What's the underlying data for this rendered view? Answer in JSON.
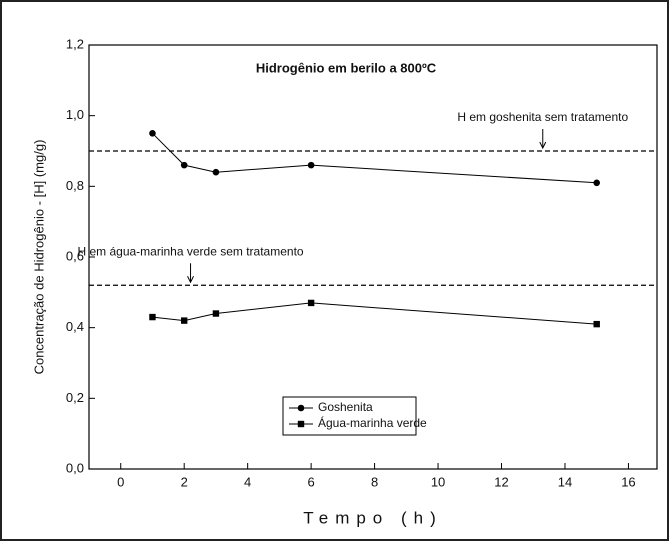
{
  "chart_data": {
    "type": "line",
    "title": "Hidrogênio em berilo a 800ºC",
    "x_label": "Tempo (h)",
    "y_label": "Concentração de Hidrogênio - [H] (mg/g)",
    "xlim": [
      -1,
      16.9
    ],
    "ylim": [
      0,
      1.2
    ],
    "xticks": [
      0,
      2,
      4,
      6,
      8,
      10,
      12,
      14,
      16
    ],
    "yticks": [
      {
        "value": 0,
        "label": "0,0"
      },
      {
        "value": 0.2,
        "label": "0,2"
      },
      {
        "value": 0.4,
        "label": "0,4"
      },
      {
        "value": 0.6,
        "label": "0,6"
      },
      {
        "value": 0.8,
        "label": "0,8"
      },
      {
        "value": 1.0,
        "label": "1,0"
      },
      {
        "value": 1.2,
        "label": "1,2"
      }
    ],
    "series": [
      {
        "name": "Goshenita",
        "color": "#000000",
        "marker": "circle",
        "x": [
          1,
          2,
          3,
          6,
          15
        ],
        "values": [
          0.95,
          0.86,
          0.84,
          0.86,
          0.81
        ]
      },
      {
        "name": "Água-marinha verde",
        "color": "#000000",
        "marker": "square",
        "x": [
          1,
          2,
          3,
          6,
          15
        ],
        "values": [
          0.43,
          0.42,
          0.44,
          0.47,
          0.41
        ]
      }
    ],
    "reference_lines": [
      {
        "value": 0.9,
        "label": "H em goshenita sem tratamento",
        "label_x": 13.3
      },
      {
        "value": 0.52,
        "label": "H em água-marinha verde sem tratamento",
        "label_x": 2.2
      }
    ]
  }
}
